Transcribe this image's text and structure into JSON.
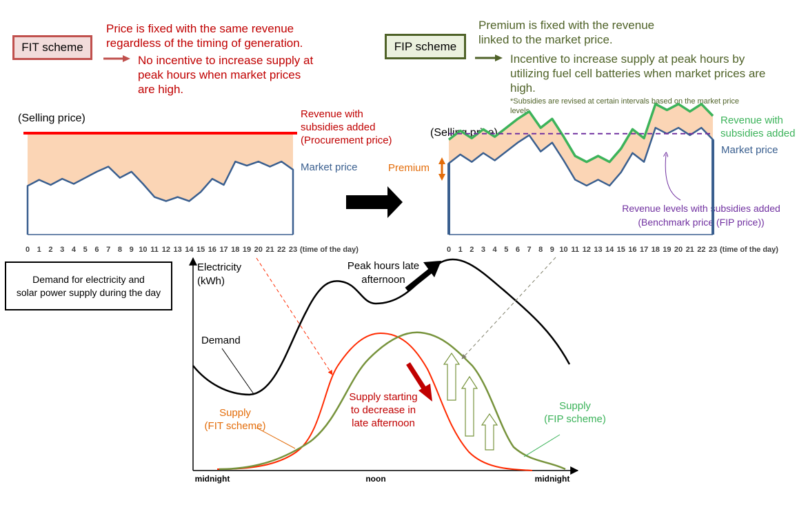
{
  "fit": {
    "scheme_label": "FIT scheme",
    "desc_line1": "Price is fixed with the same revenue",
    "desc_line2": "regardless of the timing of generation.",
    "consequence_line1": "No incentive to increase supply at",
    "consequence_line2": "peak hours when market prices",
    "consequence_line3": "are high.",
    "selling_price_label": "(Selling price)",
    "revenue_label_line1": "Revenue with",
    "revenue_label_line2": "subsidies added",
    "revenue_label_line3": "(Procurement price)",
    "market_price_label": "Market price",
    "hour_suffix": "(time of the day)"
  },
  "fip": {
    "scheme_label": "FIP scheme",
    "desc_line1": "Premium is fixed with the revenue",
    "desc_line2": "linked to the market price.",
    "consequence_line1": "Incentive to increase supply at peak hours by",
    "consequence_line2": "utilizing fuel cell batteries when market prices are",
    "consequence_line3": "high.",
    "note_line1": "*Subsidies are revised at certain intervals based on the market price",
    "note_line2": "levels",
    "selling_price_label": "(Selling price)",
    "premium_label": "Premium",
    "revenue_label_line1": "Revenue with",
    "revenue_label_line2": "subsidies added",
    "market_price_label": "Market price",
    "benchmark_line1": "Revenue levels with subsidies added",
    "benchmark_line2": "(Benchmark price (FIP price))",
    "hour_suffix": "(time of the day)"
  },
  "hours": [
    "0",
    "1",
    "2",
    "3",
    "4",
    "5",
    "6",
    "7",
    "8",
    "9",
    "10",
    "11",
    "12",
    "13",
    "14",
    "15",
    "16",
    "17",
    "18",
    "19",
    "20",
    "21",
    "22",
    "23"
  ],
  "colors": {
    "fit_red": "#c00000",
    "fip_olive": "#4f6228",
    "market_blue": "#3a5f8f",
    "fill_peach": "#fbd5b5",
    "revenue_green": "#3cb35a",
    "benchmark_purple": "#7030a0",
    "premium_orange": "#e36c09",
    "supply_fit": "#ff2a00",
    "supply_fip": "#77933c"
  },
  "bottom": {
    "box_line1": "Demand for electricity and",
    "box_line2": "solar power supply during the day",
    "y_label_line1": "Electricity",
    "y_label_line2": "(kWh)",
    "peak_line1": "Peak hours late",
    "peak_line2": "afternoon",
    "demand_label": "Demand",
    "supply_decrease_line1": "Supply starting",
    "supply_decrease_line2": "to decrease in",
    "supply_decrease_line3": "late afternoon",
    "supply_fit_line1": "Supply",
    "supply_fit_line2": "(FIT scheme)",
    "supply_fip_line1": "Supply",
    "supply_fip_line2": "(FIP scheme)",
    "x_midnight_start": "midnight",
    "x_noon": "noon",
    "x_midnight_end": "midnight"
  },
  "chart_data": [
    {
      "type": "line",
      "title": "FIT scheme",
      "x": [
        0,
        1,
        2,
        3,
        4,
        5,
        6,
        7,
        8,
        9,
        10,
        11,
        12,
        13,
        14,
        15,
        16,
        17,
        18,
        19,
        20,
        21,
        22,
        23
      ],
      "series": [
        {
          "name": "Market price",
          "values": [
            0.48,
            0.54,
            0.49,
            0.55,
            0.5,
            0.56,
            0.62,
            0.67,
            0.56,
            0.62,
            0.5,
            0.37,
            0.33,
            0.37,
            0.33,
            0.42,
            0.55,
            0.49,
            0.72,
            0.68,
            0.72,
            0.67,
            0.72,
            0.64
          ]
        },
        {
          "name": "Revenue with subsidies added (Procurement price)",
          "values": [
            1,
            1,
            1,
            1,
            1,
            1,
            1,
            1,
            1,
            1,
            1,
            1,
            1,
            1,
            1,
            1,
            1,
            1,
            1,
            1,
            1,
            1,
            1,
            1
          ]
        }
      ]
    },
    {
      "type": "line",
      "title": "FIP scheme",
      "x": [
        0,
        1,
        2,
        3,
        4,
        5,
        6,
        7,
        8,
        9,
        10,
        11,
        12,
        13,
        14,
        15,
        16,
        17,
        18,
        19,
        20,
        21,
        22,
        23
      ],
      "series": [
        {
          "name": "Market price",
          "values": [
            0.48,
            0.54,
            0.49,
            0.55,
            0.5,
            0.56,
            0.62,
            0.67,
            0.56,
            0.62,
            0.5,
            0.37,
            0.33,
            0.37,
            0.33,
            0.42,
            0.55,
            0.49,
            0.72,
            0.68,
            0.72,
            0.67,
            0.72,
            0.64
          ]
        },
        {
          "name": "Revenue with subsidies added",
          "values": [
            0.64,
            0.7,
            0.65,
            0.71,
            0.66,
            0.72,
            0.78,
            0.83,
            0.72,
            0.78,
            0.66,
            0.53,
            0.49,
            0.53,
            0.49,
            0.58,
            0.71,
            0.65,
            0.88,
            0.84,
            0.88,
            0.83,
            0.88,
            0.8
          ]
        },
        {
          "name": "Revenue levels with subsidies added (Benchmark price (FIP price))",
          "values": [
            0.68,
            0.68,
            0.68,
            0.68,
            0.68,
            0.68,
            0.68,
            0.68,
            0.68,
            0.68,
            0.68,
            0.68,
            0.68,
            0.68,
            0.68,
            0.68,
            0.68,
            0.68,
            0.68,
            0.68,
            0.68,
            0.68,
            0.68,
            0.68
          ]
        }
      ]
    }
  ]
}
